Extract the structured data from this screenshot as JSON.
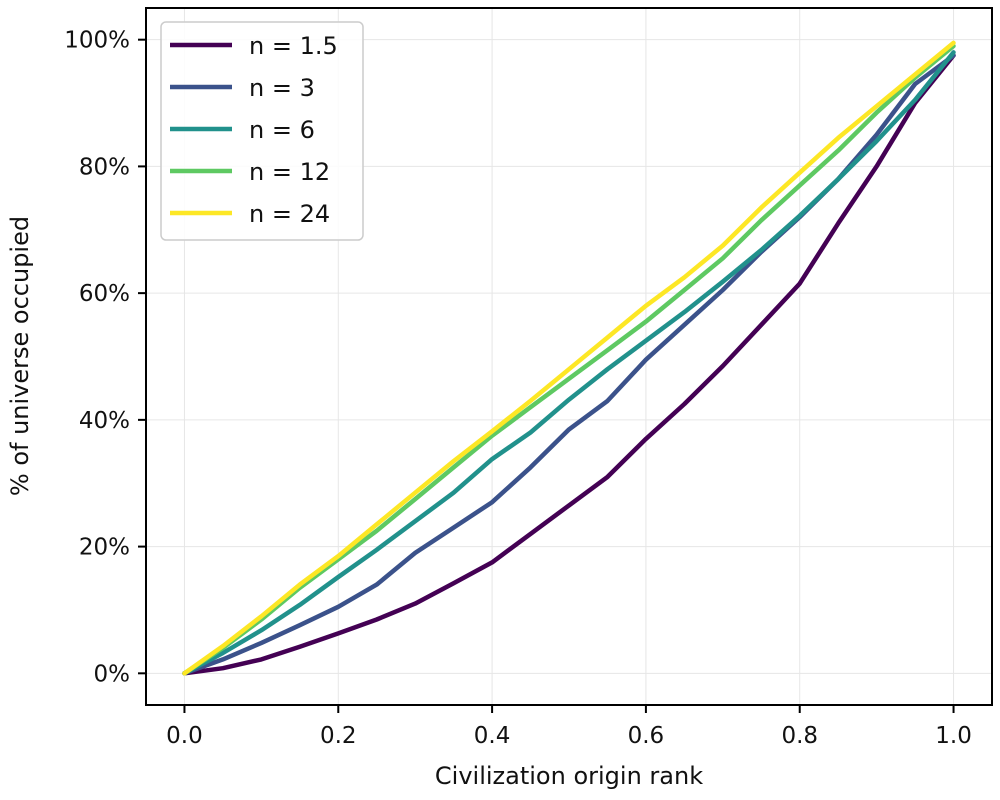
{
  "chart_data": {
    "type": "line",
    "title": "",
    "xlabel": "Civilization origin rank",
    "ylabel": "% of universe occupied",
    "xlim": [
      -0.05,
      1.05
    ],
    "ylim": [
      -5,
      105
    ],
    "xticks": [
      0.0,
      0.2,
      0.4,
      0.6,
      0.8,
      1.0
    ],
    "xtick_labels": [
      "0.0",
      "0.2",
      "0.4",
      "0.6",
      "0.8",
      "1.0"
    ],
    "yticks": [
      0,
      20,
      40,
      60,
      80,
      100
    ],
    "ytick_labels": [
      "0%",
      "20%",
      "40%",
      "60%",
      "80%",
      "100%"
    ],
    "grid": true,
    "legend_position": "top-left",
    "x": [
      0,
      0.05,
      0.1,
      0.15,
      0.2,
      0.25,
      0.3,
      0.35,
      0.4,
      0.45,
      0.5,
      0.55,
      0.6,
      0.65,
      0.7,
      0.75,
      0.8,
      0.85,
      0.9,
      0.95,
      1.0
    ],
    "series": [
      {
        "name": "n = 1.5",
        "color": "#440154",
        "values": [
          0,
          0.8,
          2.2,
          4.2,
          6.3,
          8.5,
          11.0,
          14.2,
          17.5,
          22.0,
          26.5,
          31.0,
          37.0,
          42.5,
          48.5,
          55.0,
          61.5,
          71.0,
          80.0,
          90.0,
          97.5
        ]
      },
      {
        "name": "n = 3",
        "color": "#3b528b",
        "values": [
          0,
          2.2,
          4.8,
          7.6,
          10.5,
          14.0,
          19.0,
          23.0,
          27.0,
          32.5,
          38.5,
          43.0,
          49.5,
          55.0,
          60.5,
          66.5,
          72.0,
          78.0,
          85.0,
          93.0,
          97.5
        ]
      },
      {
        "name": "n = 6",
        "color": "#21918c",
        "values": [
          0,
          3.2,
          6.8,
          10.8,
          15.2,
          19.5,
          24.0,
          28.5,
          33.8,
          38.0,
          43.2,
          48.0,
          52.5,
          57.0,
          61.8,
          66.8,
          72.2,
          78.0,
          84.0,
          90.5,
          98.0
        ]
      },
      {
        "name": "n = 12",
        "color": "#5ec962",
        "values": [
          0,
          4.0,
          8.5,
          13.5,
          18.0,
          22.5,
          27.5,
          32.5,
          37.5,
          42.0,
          46.5,
          51.0,
          55.5,
          60.5,
          65.5,
          71.5,
          77.0,
          82.5,
          88.5,
          94.0,
          99.0
        ]
      },
      {
        "name": "n = 24",
        "color": "#fde725",
        "values": [
          0,
          4.3,
          9.0,
          14.0,
          18.5,
          23.5,
          28.5,
          33.5,
          38.2,
          43.0,
          48.0,
          53.0,
          58.0,
          62.5,
          67.5,
          73.5,
          79.0,
          84.5,
          89.5,
          94.5,
          99.5
        ]
      }
    ]
  }
}
